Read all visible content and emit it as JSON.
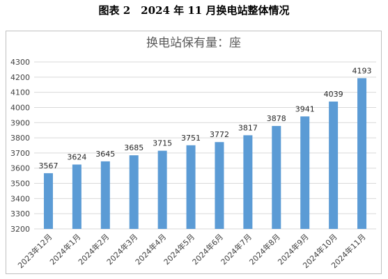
{
  "figure": {
    "caption": "图表 2　2024 年 11 月换电站整体情况"
  },
  "chart_data": {
    "type": "bar",
    "title": "换电站保有量：座",
    "xlabel": "",
    "ylabel": "",
    "categories": [
      "2023年12月",
      "2024年1月",
      "2024年2月",
      "2024年3月",
      "2024年4月",
      "2024年5月",
      "2024年6月",
      "2024年7月",
      "2024年8月",
      "2024年9月",
      "2024年10月",
      "2024年11月"
    ],
    "values": [
      3567,
      3624,
      3645,
      3685,
      3715,
      3751,
      3772,
      3817,
      3878,
      3941,
      4039,
      4193
    ],
    "ylim": [
      3200,
      4300
    ],
    "yticks": [
      3200,
      3300,
      3400,
      3500,
      3600,
      3700,
      3800,
      3900,
      4000,
      4100,
      4200,
      4300
    ],
    "grid": true,
    "legend": "none",
    "bar_color": "#5b9bd5",
    "grid_color": "#d9d9d9"
  }
}
